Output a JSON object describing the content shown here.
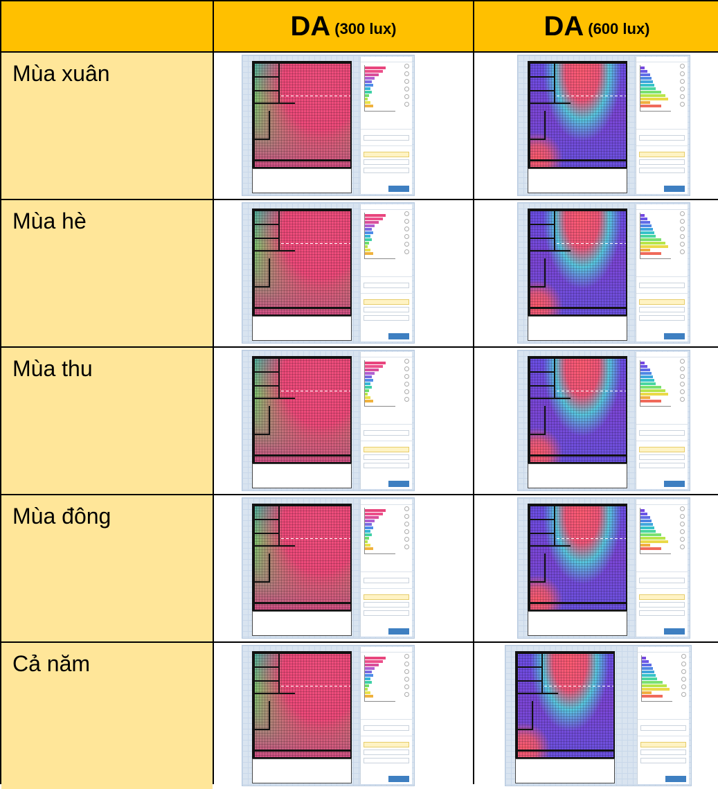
{
  "header": {
    "col1_title": "DA",
    "col1_sub": "(300 lux)",
    "col2_title": "DA",
    "col2_sub": "(600 lux)"
  },
  "rows": [
    {
      "label": "Mùa xuân"
    },
    {
      "label": "Mùa hè"
    },
    {
      "label": "Mùa thu"
    },
    {
      "label": "Mùa đông"
    },
    {
      "label": "Cả năm"
    }
  ],
  "colors": {
    "header_bg": "#ffc000",
    "label_bg": "#ffe699",
    "calc_button": "#3e7fc1"
  }
}
